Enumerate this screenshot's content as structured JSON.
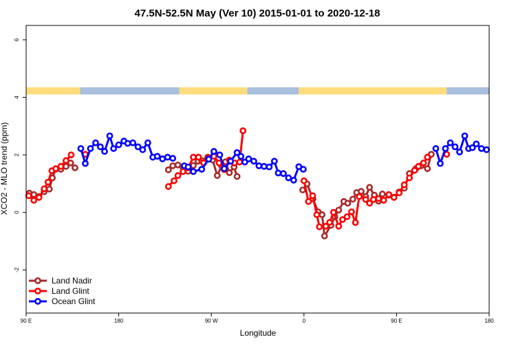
{
  "chart_data": {
    "type": "line",
    "title": "47.5N-52.5N May (Ver 10)   2015-01-01 to 2020-12-18",
    "xlabel": "Longitude",
    "ylabel": "XCO2 - MLO trend (ppm)",
    "xlim": [
      90,
      450
    ],
    "ylim": [
      -3.5,
      6.5
    ],
    "x_ticks": [
      {
        "value": 90,
        "label": "90 E"
      },
      {
        "value": 162,
        "label": "180"
      },
      {
        "value": 234,
        "label": "90 W"
      },
      {
        "value": 306,
        "label": "0"
      },
      {
        "value": 378,
        "label": "90 E"
      },
      {
        "value": 450,
        "label": "180"
      }
    ],
    "y_ticks": [
      {
        "value": -2,
        "label": "-2"
      },
      {
        "value": 0,
        "label": "0"
      },
      {
        "value": 2,
        "label": "2"
      },
      {
        "value": 4,
        "label": "4"
      },
      {
        "value": 6,
        "label": "6"
      }
    ],
    "land_ocean_strip": {
      "y_range": [
        4.1,
        4.35
      ],
      "land_color": "#fddc7e",
      "ocean_color": "#a8bfde",
      "segments": [
        {
          "type": "land",
          "x0": 90,
          "x1": 132
        },
        {
          "type": "ocean",
          "x0": 132,
          "x1": 209
        },
        {
          "type": "land",
          "x0": 209,
          "x1": 262
        },
        {
          "type": "ocean",
          "x0": 262,
          "x1": 302
        },
        {
          "type": "land",
          "x0": 302,
          "x1": 417
        },
        {
          "type": "ocean",
          "x0": 417,
          "x1": 450
        }
      ]
    },
    "legend": {
      "position": "bottom-left",
      "entries": [
        "Land Nadir",
        "Land Glint",
        "Ocean Glint"
      ]
    },
    "series": [
      {
        "name": "Land Nadir",
        "color": "#a52a2a",
        "segments": [
          [
            [
              92.4,
              0.67
            ],
            [
              96,
              0.62
            ],
            [
              100,
              0.55
            ],
            [
              104,
              0.72
            ],
            [
              108,
              0.81
            ],
            [
              110.4,
              1.2
            ],
            [
              113,
              1.5
            ],
            [
              117,
              1.5
            ],
            [
              121,
              1.6
            ],
            [
              124.6,
              1.72
            ],
            [
              128,
              1.55
            ]
          ],
          [
            [
              200.6,
              1.48
            ],
            [
              204,
              1.62
            ],
            [
              208,
              1.65
            ],
            [
              212,
              1.56
            ],
            [
              216,
              1.43
            ],
            [
              220,
              1.63
            ],
            [
              223.7,
              1.78
            ],
            [
              226.5,
              1.8
            ],
            [
              231.2,
              1.92
            ],
            [
              235,
              1.82
            ],
            [
              238.6,
              1.28
            ],
            [
              242,
              1.62
            ],
            [
              245,
              1.76
            ],
            [
              248,
              1.38
            ],
            [
              251.7,
              1.58
            ],
            [
              254,
              1.25
            ]
          ],
          [
            [
              305,
              0.78
            ],
            [
              308.4,
              0.99
            ],
            [
              313,
              0.47
            ],
            [
              317,
              0.02
            ],
            [
              320.1,
              -0.08
            ],
            [
              322,
              -0.82
            ],
            [
              327,
              -0.45
            ],
            [
              330,
              -0.15
            ],
            [
              333,
              0.08
            ],
            [
              337,
              0.38
            ],
            [
              340,
              0.32
            ],
            [
              344,
              0.46
            ],
            [
              347,
              0.69
            ],
            [
              350.5,
              0.73
            ],
            [
              354,
              0.55
            ],
            [
              357,
              0.87
            ],
            [
              360.7,
              0.6
            ],
            [
              364,
              0.39
            ],
            [
              367,
              0.64
            ],
            [
              372,
              0.6
            ],
            [
              376,
              0.53
            ],
            [
              380,
              0.71
            ],
            [
              384,
              0.84
            ],
            [
              388,
              1.35
            ],
            [
              393,
              1.52
            ],
            [
              397,
              1.62
            ],
            [
              402,
              1.52
            ],
            [
              405,
              2.02
            ]
          ]
        ]
      },
      {
        "name": "Land Glint",
        "color": "#ff0000",
        "segments": [
          [
            [
              92,
              0.58
            ],
            [
              96,
              0.42
            ],
            [
              100,
              0.52
            ],
            [
              104,
              0.82
            ],
            [
              107,
              1.05
            ],
            [
              110,
              1.45
            ],
            [
              113,
              1.52
            ],
            [
              117,
              1.6
            ],
            [
              121,
              1.8
            ],
            [
              125,
              2.0
            ]
          ],
          [
            [
              136,
              2.02
            ]
          ],
          [
            [
              200.6,
              0.9
            ],
            [
              205,
              1.1
            ],
            [
              208,
              1.28
            ],
            [
              212,
              1.42
            ],
            [
              216,
              1.55
            ],
            [
              220,
              1.92
            ],
            [
              224,
              1.92
            ],
            [
              228,
              1.72
            ],
            [
              232,
              1.9
            ],
            [
              236,
              1.95
            ],
            [
              240,
              1.72
            ],
            [
              244,
              1.49
            ],
            [
              248,
              1.82
            ],
            [
              252,
              1.72
            ],
            [
              256,
              1.75
            ],
            [
              258.6,
              2.84
            ]
          ],
          [
            [
              306,
              1.1
            ],
            [
              309.5,
              0.38
            ],
            [
              312.8,
              0.58
            ],
            [
              316,
              -0.08
            ],
            [
              318,
              -0.5
            ],
            [
              323,
              -0.48
            ],
            [
              326,
              -0.35
            ],
            [
              329,
              0.0
            ],
            [
              333,
              -0.48
            ],
            [
              336,
              -0.25
            ],
            [
              339.5,
              -0.15
            ],
            [
              343,
              0.02
            ],
            [
              346,
              -0.35
            ],
            [
              349,
              0.55
            ],
            [
              354,
              0.45
            ],
            [
              357,
              0.32
            ],
            [
              360,
              0.45
            ],
            [
              364,
              0.48
            ],
            [
              368,
              0.42
            ],
            [
              372,
              0.62
            ],
            [
              376,
              0.52
            ],
            [
              380,
              0.68
            ],
            [
              384,
              0.96
            ],
            [
              388,
              1.2
            ],
            [
              392,
              1.46
            ],
            [
              395,
              1.6
            ],
            [
              399,
              1.72
            ],
            [
              402,
              1.92
            ]
          ],
          [
            [
              417,
              2.02
            ]
          ]
        ]
      },
      {
        "name": "Ocean Glint",
        "color": "#0000ff",
        "segments": [
          [
            [
              132.5,
              2.22
            ],
            [
              136,
              1.7
            ],
            [
              140,
              2.22
            ],
            [
              144,
              2.42
            ],
            [
              147.7,
              2.28
            ],
            [
              151,
              2.12
            ],
            [
              155,
              2.66
            ],
            [
              158,
              2.22
            ],
            [
              162,
              2.35
            ],
            [
              166,
              2.48
            ],
            [
              169,
              2.4
            ],
            [
              173,
              2.42
            ],
            [
              177,
              2.28
            ],
            [
              180.6,
              2.18
            ],
            [
              184.6,
              2.42
            ],
            [
              188.5,
              1.92
            ],
            [
              192,
              1.95
            ],
            [
              196,
              1.86
            ],
            [
              200,
              1.92
            ],
            [
              204,
              1.88
            ]
          ],
          [
            [
              213,
              1.62
            ],
            [
              216,
              1.58
            ],
            [
              220,
              1.42
            ],
            [
              226.5,
              1.5
            ],
            [
              232,
              1.85
            ],
            [
              236,
              2.12
            ],
            [
              240.5,
              2.0
            ],
            [
              244,
              1.52
            ],
            [
              249,
              1.78
            ],
            [
              254,
              2.08
            ],
            [
              257,
              1.95
            ],
            [
              260,
              1.75
            ],
            [
              263,
              1.86
            ],
            [
              267,
              1.78
            ],
            [
              271,
              1.62
            ],
            [
              275,
              1.6
            ],
            [
              279,
              1.58
            ],
            [
              283,
              1.78
            ],
            [
              286,
              1.37
            ],
            [
              290,
              1.35
            ],
            [
              294,
              1.2
            ],
            [
              298,
              1.12
            ],
            [
              302,
              1.59
            ],
            [
              305.5,
              1.5
            ]
          ],
          [
            [
              408.5,
              2.22
            ],
            [
              412,
              1.7
            ],
            [
              416,
              2.22
            ],
            [
              419.8,
              2.42
            ],
            [
              423.5,
              2.28
            ],
            [
              427,
              2.1
            ],
            [
              431,
              2.66
            ],
            [
              434,
              2.22
            ],
            [
              437,
              2.25
            ],
            [
              440,
              2.38
            ],
            [
              444,
              2.22
            ],
            [
              448,
              2.18
            ]
          ]
        ]
      }
    ]
  }
}
